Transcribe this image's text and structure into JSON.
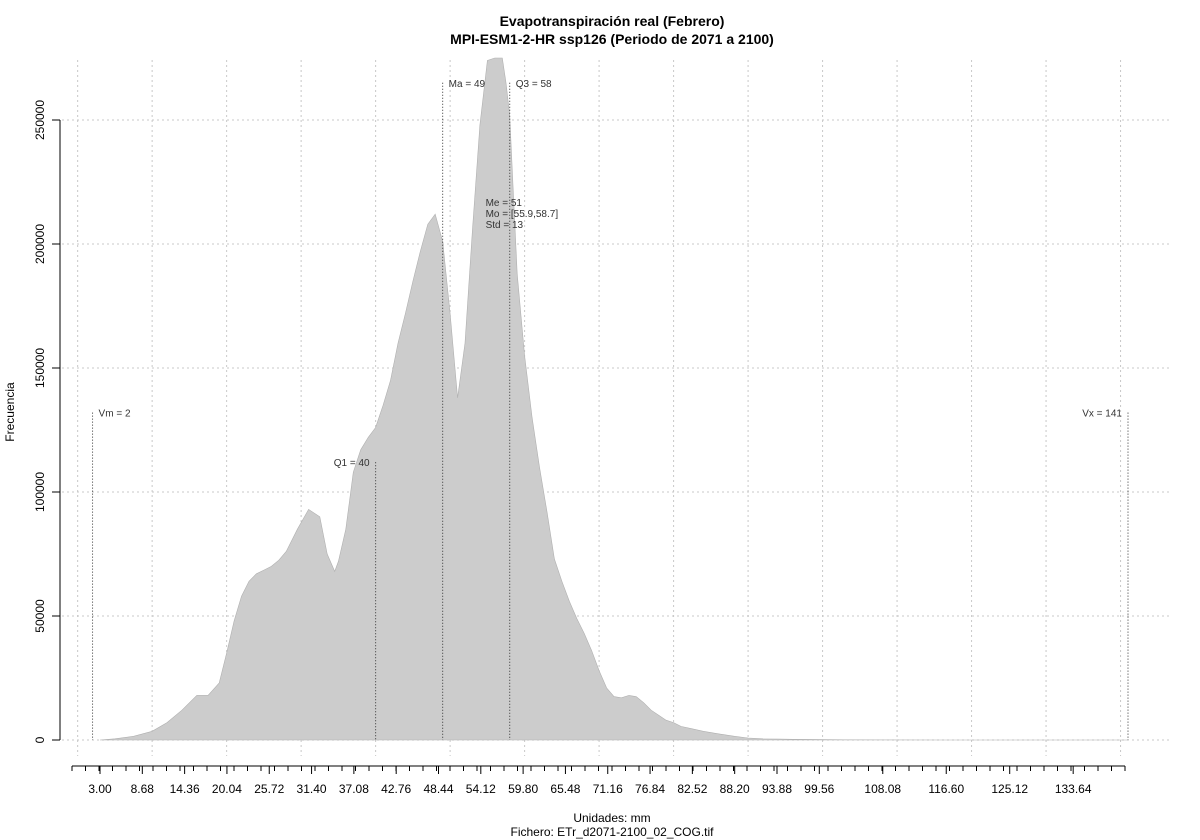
{
  "chart_data": {
    "type": "area",
    "title": "Evapotranspiración real (Febrero)",
    "subtitle": "MPI-ESM1-2-HR ssp126 (Periodo de 2071 a 2100)",
    "xlabel": "Unidades: mm",
    "ylabel": "Frecuencia",
    "file_label": "Fichero: ETr_d2071-2100_02_COG.tif",
    "xlim": [
      3.0,
      141.0
    ],
    "ylim": [
      0,
      275000
    ],
    "x_ticks": [
      "3.00",
      "8.68",
      "14.36",
      "20.04",
      "25.72",
      "31.40",
      "37.08",
      "42.76",
      "48.44",
      "54.12",
      "59.80",
      "65.48",
      "71.16",
      "76.84",
      "82.52",
      "88.20",
      "93.88",
      "99.56",
      "108.08",
      "116.60",
      "125.12",
      "133.64"
    ],
    "y_ticks": [
      "0",
      "50000",
      "100000",
      "150000",
      "200000",
      "250000"
    ],
    "x_grid": [
      0,
      10,
      20,
      30,
      40,
      50,
      60,
      70,
      80,
      90,
      100,
      110,
      120,
      130,
      140,
      150
    ],
    "y_grid": [
      0,
      50000,
      100000,
      150000,
      200000,
      250000
    ],
    "grid": true,
    "fill_color": "#cccccc",
    "series": [
      {
        "x": [
          3.0,
          5.0,
          7.5,
          10.0,
          12.0,
          14.0,
          16.0,
          17.5,
          19.0,
          20.0,
          21.0,
          22.0,
          23.0,
          24.0,
          25.0,
          26.0,
          27.0,
          28.0,
          29.5,
          31.0,
          32.5,
          33.5,
          34.5,
          35.0,
          36.0,
          37.0,
          38.0,
          39.0,
          40.0,
          41.0,
          42.0,
          43.0,
          44.0,
          45.0,
          46.0,
          47.0,
          48.0,
          49.0,
          50.0,
          51.0,
          52.0,
          53.0,
          54.0,
          55.0,
          56.0,
          57.0,
          57.5,
          58.0,
          58.5,
          59.0,
          60.0,
          61.0,
          62.0,
          63.0,
          64.0,
          65.0,
          66.0,
          67.0,
          68.0,
          69.0,
          70.0,
          71.0,
          72.0,
          73.0,
          74.0,
          75.0,
          76.0,
          77.0,
          78.0,
          79.0,
          80.0,
          81.0,
          82.5,
          84.0,
          86.0,
          88.2,
          90.0,
          92.0,
          94.0,
          96.0,
          99.6,
          103.0,
          108.1,
          116.6,
          125.1,
          133.6,
          141.0
        ],
        "y": [
          0,
          500,
          1500,
          3500,
          7000,
          12000,
          18000,
          18000,
          23000,
          35000,
          48000,
          58000,
          64000,
          67000,
          68500,
          70000,
          72500,
          76000,
          85000,
          93000,
          90000,
          75000,
          68000,
          72000,
          85000,
          108000,
          117000,
          122000,
          126000,
          135000,
          145000,
          160000,
          172000,
          185000,
          197000,
          208000,
          212000,
          201000,
          172000,
          138000,
          160000,
          206000,
          248000,
          274000,
          282000,
          276000,
          265000,
          252000,
          220000,
          188000,
          155000,
          130000,
          110000,
          92000,
          73000,
          64000,
          56000,
          49000,
          43000,
          36000,
          28000,
          21000,
          17500,
          17000,
          18000,
          17500,
          15000,
          12000,
          10000,
          8000,
          7000,
          5500,
          4500,
          3500,
          2500,
          1500,
          800,
          500,
          400,
          300,
          200,
          100,
          50,
          20,
          10,
          5,
          0
        ]
      }
    ],
    "markers": [
      {
        "label": "Vm = 2",
        "x": 2.0,
        "y": 132000,
        "label_side": "right"
      },
      {
        "label": "Q1 = 40",
        "x": 40.0,
        "y": 112000,
        "label_side": "left"
      },
      {
        "label": "Ma = 49",
        "x": 49.0,
        "y": 265000,
        "label_side": "right"
      },
      {
        "label": "Q3 = 58",
        "x": 58.0,
        "y": 265000,
        "label_side": "right"
      },
      {
        "label": "Vx = 141",
        "x": 141.0,
        "y": 132000,
        "label_side": "left"
      }
    ],
    "stats_labels": [
      "Me = 51",
      "Mo = [55.9,58.7]",
      "Std = 13"
    ]
  }
}
